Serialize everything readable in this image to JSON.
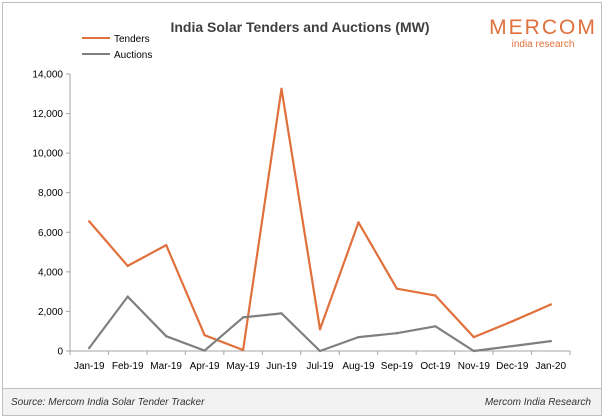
{
  "chart_data": {
    "type": "line",
    "title": "India Solar Tenders and Auctions (MW)",
    "categories": [
      "Jan-19",
      "Feb-19",
      "Mar-19",
      "Apr-19",
      "May-19",
      "Jun-19",
      "Jul-19",
      "Aug-19",
      "Sep-19",
      "Oct-19",
      "Nov-19",
      "Dec-19",
      "Jan-20"
    ],
    "series": [
      {
        "name": "Tenders",
        "color": "#e0703c",
        "values": [
          6550,
          4300,
          5350,
          800,
          50,
          13250,
          1100,
          6500,
          3150,
          2800,
          700,
          1500,
          2350
        ]
      },
      {
        "name": "Auctions",
        "color": "#7f7f7f",
        "values": [
          150,
          2750,
          750,
          20,
          1700,
          1900,
          0,
          700,
          900,
          1250,
          0,
          250,
          500
        ]
      }
    ],
    "ylim": [
      0,
      14000
    ],
    "yticks": [
      "0",
      "2,000",
      "4,000",
      "6,000",
      "8,000",
      "10,000",
      "12,000",
      "14,000"
    ],
    "ytick_values": [
      0,
      2000,
      4000,
      6000,
      8000,
      10000,
      12000,
      14000
    ],
    "grid": false,
    "legend": "top-left"
  },
  "logo": {
    "name": "MERCOM",
    "tagline": "india research",
    "color": "#e0703c"
  },
  "footer": {
    "source": "Source: Mercom India Solar Tender Tracker",
    "credit": "Mercom India Research"
  }
}
